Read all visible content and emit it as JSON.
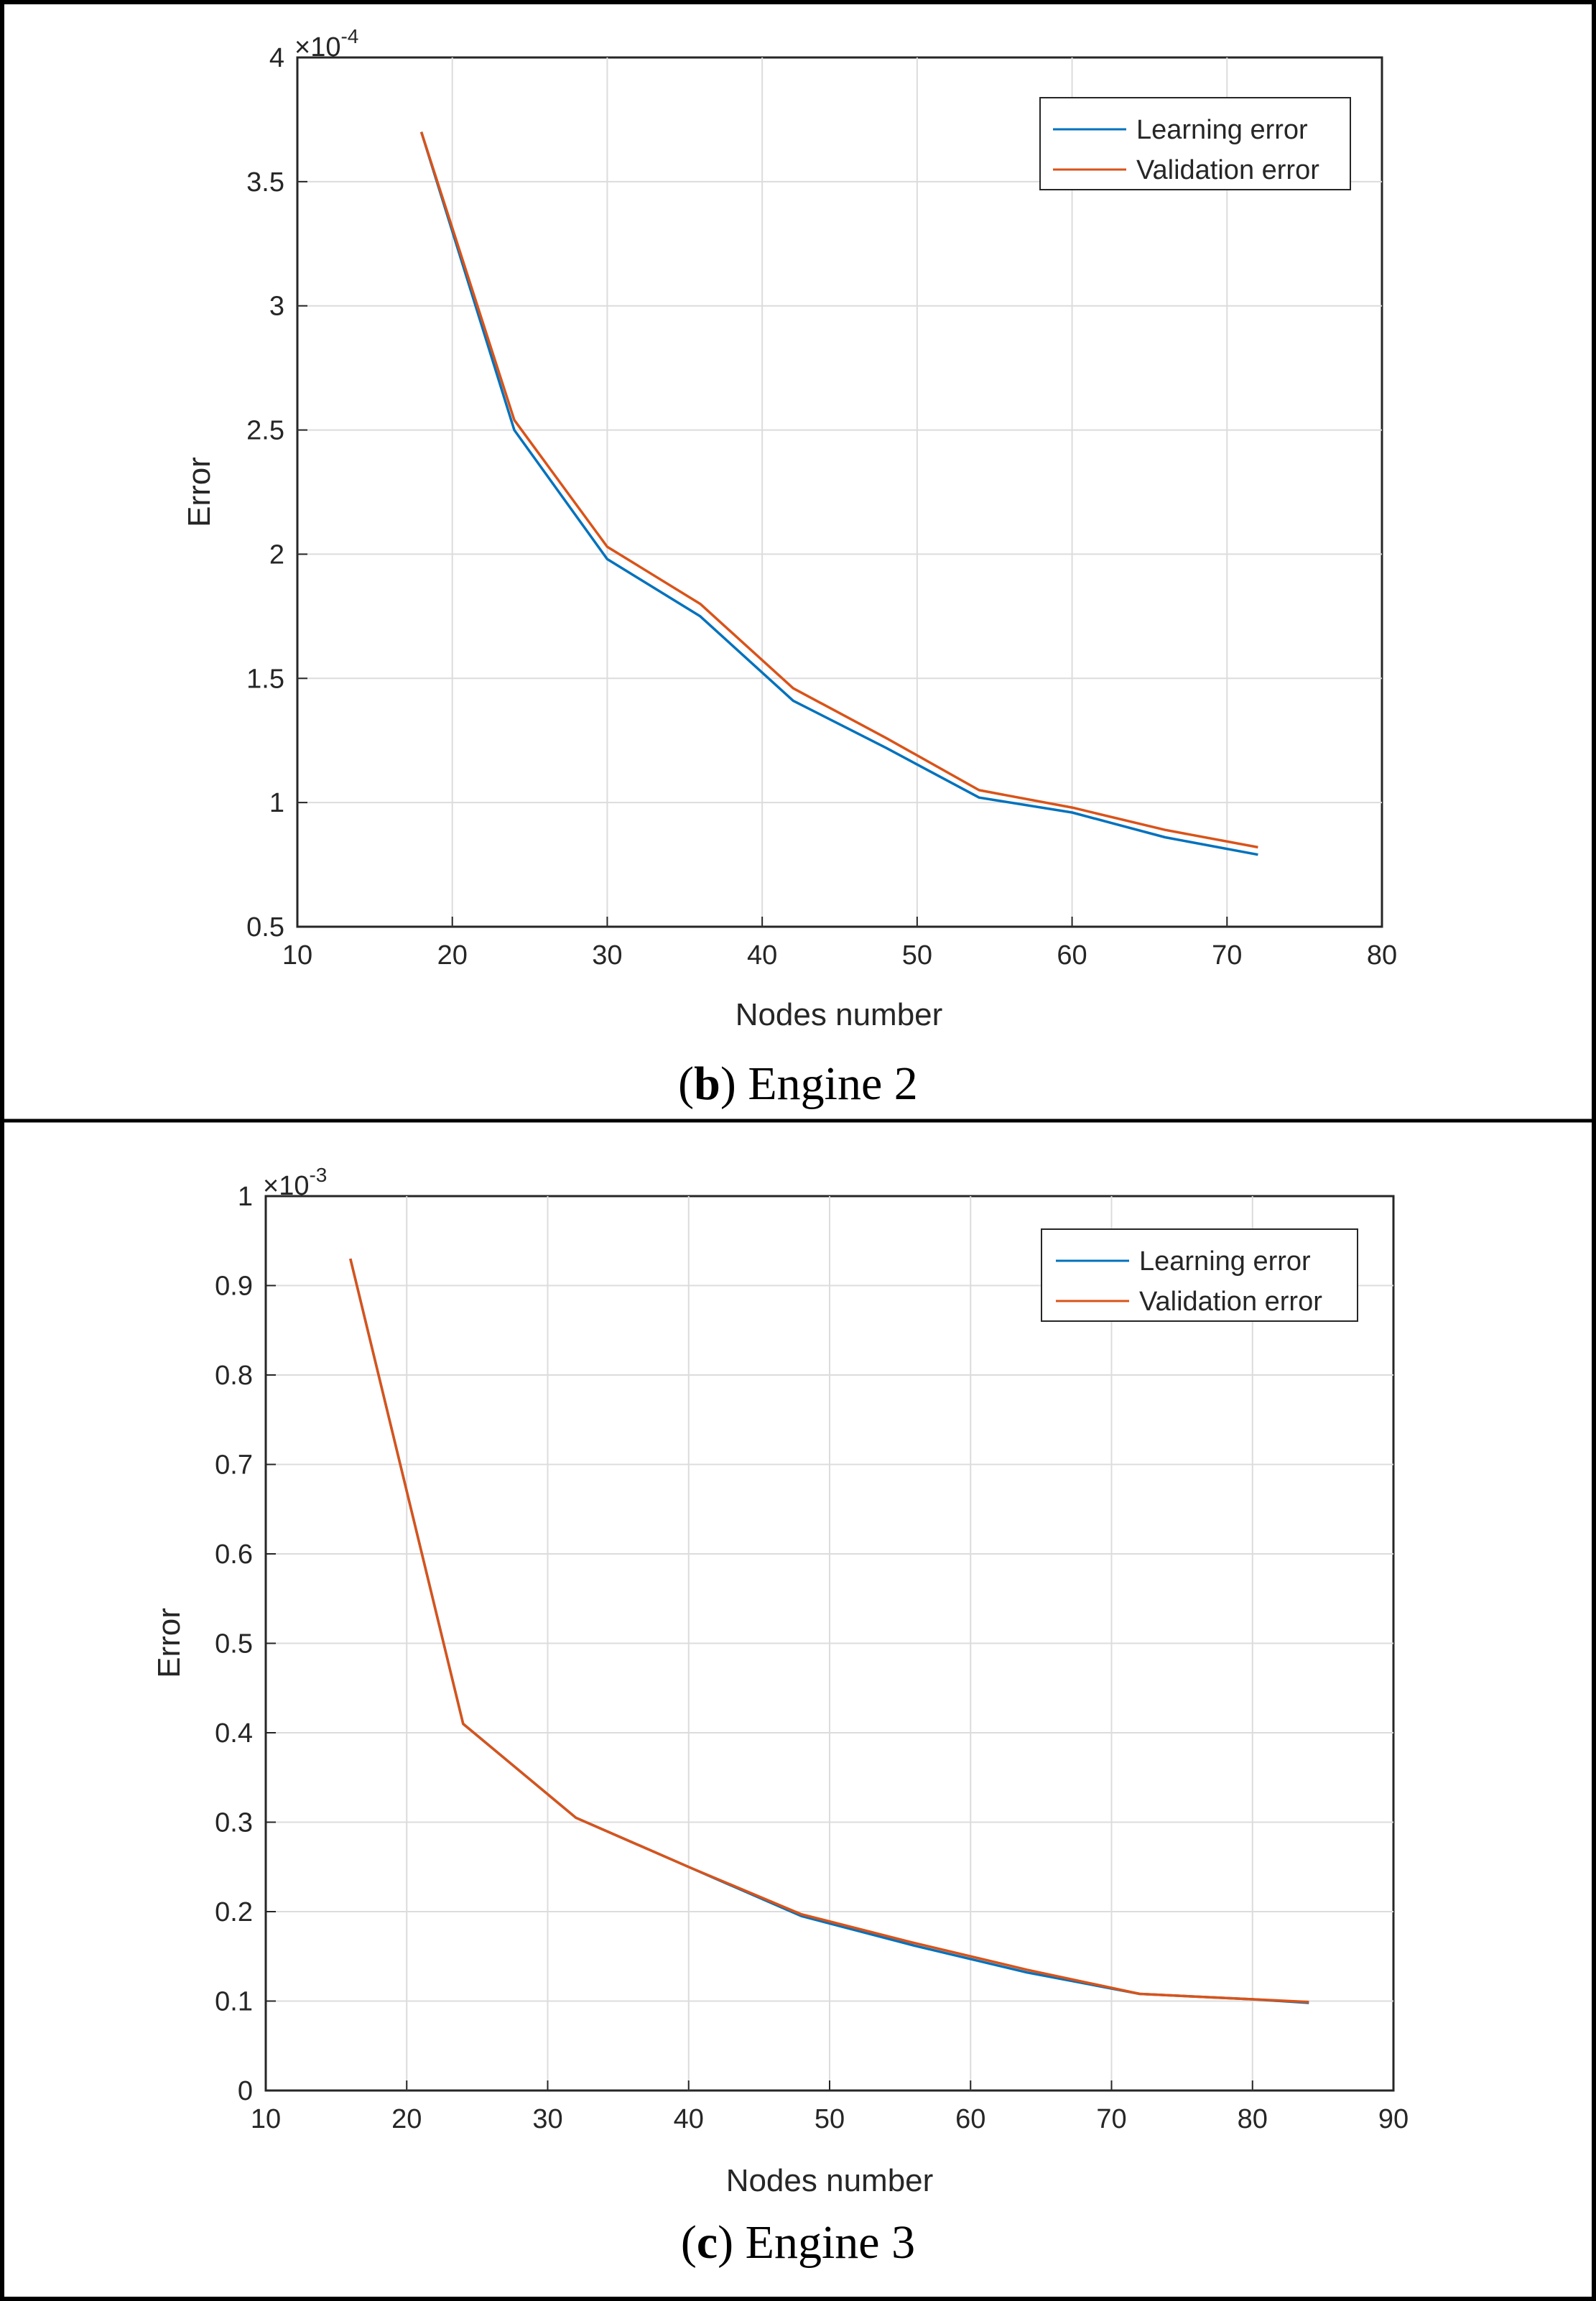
{
  "chart_data": [
    {
      "type": "line",
      "caption": {
        "open": "(",
        "letter": "b",
        "close": ")",
        "text": " Engine 2"
      },
      "xlabel": "Nodes number",
      "ylabel": "Error",
      "y_multiplier": {
        "prefix": "×10",
        "exponent": "-4"
      },
      "xlim": [
        10,
        80
      ],
      "ylim": [
        0.5,
        4
      ],
      "x_ticks": [
        "10",
        "20",
        "30",
        "40",
        "50",
        "60",
        "70",
        "80"
      ],
      "y_ticks": [
        "0.5",
        "1",
        "1.5",
        "2",
        "2.5",
        "3",
        "3.5",
        "4"
      ],
      "grid": true,
      "legend_position": "top-right",
      "x": [
        18,
        24,
        30,
        36,
        42,
        48,
        54,
        60,
        66,
        72
      ],
      "series": [
        {
          "name": "Learning error",
          "color": "#0072BD",
          "values": [
            3.7,
            2.5,
            1.98,
            1.75,
            1.41,
            1.22,
            1.02,
            0.96,
            0.86,
            0.79
          ]
        },
        {
          "name": "Validation error",
          "color": "#D95319",
          "values": [
            3.7,
            2.54,
            2.03,
            1.8,
            1.46,
            1.26,
            1.05,
            0.98,
            0.89,
            0.82
          ]
        }
      ]
    },
    {
      "type": "line",
      "caption": {
        "open": "(",
        "letter": "c",
        "close": ")",
        "text": " Engine 3"
      },
      "xlabel": "Nodes number",
      "ylabel": "Error",
      "y_multiplier": {
        "prefix": "×10",
        "exponent": "-3"
      },
      "xlim": [
        10,
        90
      ],
      "ylim": [
        0,
        1
      ],
      "x_ticks": [
        "10",
        "20",
        "30",
        "40",
        "50",
        "60",
        "70",
        "80",
        "90"
      ],
      "y_ticks": [
        "0",
        "0.1",
        "0.2",
        "0.3",
        "0.4",
        "0.5",
        "0.6",
        "0.7",
        "0.8",
        "0.9",
        "1"
      ],
      "grid": true,
      "legend_position": "top-right",
      "x": [
        16,
        24,
        32,
        40,
        48,
        56,
        64,
        72,
        80,
        84
      ],
      "series": [
        {
          "name": "Learning error",
          "color": "#0072BD",
          "values": [
            0.93,
            0.41,
            0.305,
            0.25,
            0.195,
            0.162,
            0.132,
            0.108,
            0.102,
            0.098
          ]
        },
        {
          "name": "Validation error",
          "color": "#D95319",
          "values": [
            0.93,
            0.41,
            0.305,
            0.25,
            0.197,
            0.165,
            0.135,
            0.108,
            0.102,
            0.099
          ]
        }
      ]
    }
  ]
}
